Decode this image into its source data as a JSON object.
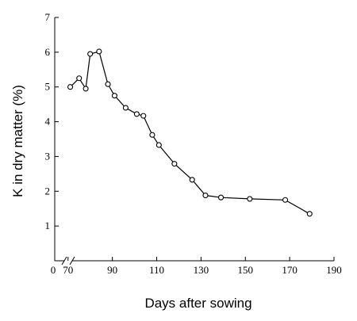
{
  "chart_data": {
    "type": "line",
    "title": "",
    "xlabel": "Days after sowing",
    "ylabel": "K in dry matter (%)",
    "x_ticks": [
      70,
      90,
      110,
      130,
      150,
      170,
      190
    ],
    "x_origin_label": "0",
    "y_ticks": [
      1,
      2,
      3,
      4,
      5,
      6,
      7
    ],
    "xlim": [
      64,
      190
    ],
    "ylim": [
      0,
      7
    ],
    "x_axis_break": true,
    "grid": false,
    "series": [
      {
        "x": [
          71,
          75,
          78,
          80,
          84,
          88,
          91,
          96,
          101,
          104,
          108,
          111,
          118,
          126,
          132,
          139,
          152,
          168,
          179
        ],
        "y": [
          5.0,
          5.25,
          4.95,
          5.95,
          6.02,
          5.08,
          4.75,
          4.4,
          4.22,
          4.17,
          3.62,
          3.33,
          2.79,
          2.33,
          1.88,
          1.82,
          1.78,
          1.75,
          1.35
        ]
      }
    ]
  }
}
